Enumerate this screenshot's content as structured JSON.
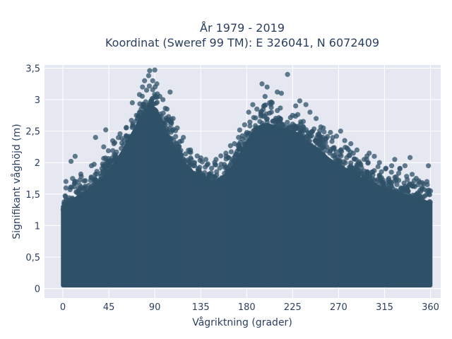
{
  "chart_data": {
    "type": "scatter",
    "title_lines": [
      "År 1979 - 2019",
      "Koordinat (Sweref 99 TM): E 326041, N 6072409"
    ],
    "xlabel": "Vågriktning (grader)",
    "ylabel": "Signifikant våghöjd (m)",
    "xlim": [
      -18,
      370
    ],
    "ylim": [
      -0.15,
      3.55
    ],
    "x_ticks": [
      0,
      45,
      90,
      135,
      180,
      225,
      270,
      315,
      360
    ],
    "x_tick_labels": [
      "0",
      "45",
      "90",
      "135",
      "180",
      "225",
      "270",
      "315",
      "360"
    ],
    "y_ticks": [
      0,
      0.5,
      1,
      1.5,
      2,
      2.5,
      3,
      3.5
    ],
    "y_tick_labels": [
      "0",
      "0,5",
      "1",
      "1,5",
      "2",
      "2,5",
      "3",
      "3,5"
    ],
    "grid": true,
    "marker_color": "#2f5168",
    "plot_background": "#e5e8f1",
    "envelope": {
      "direction": [
        0,
        10,
        20,
        30,
        40,
        50,
        60,
        70,
        80,
        85,
        90,
        95,
        100,
        110,
        120,
        130,
        140,
        150,
        160,
        170,
        180,
        190,
        200,
        210,
        220,
        230,
        240,
        250,
        260,
        270,
        280,
        290,
        300,
        310,
        320,
        330,
        340,
        350,
        360
      ],
      "upper_height": [
        1.3,
        1.4,
        1.5,
        1.6,
        1.75,
        1.95,
        2.2,
        2.5,
        2.8,
        2.9,
        2.85,
        2.7,
        2.5,
        2.2,
        1.95,
        1.8,
        1.7,
        1.7,
        1.8,
        2.0,
        2.3,
        2.55,
        2.6,
        2.55,
        2.5,
        2.45,
        2.3,
        2.2,
        2.05,
        1.95,
        1.85,
        1.75,
        1.7,
        1.6,
        1.55,
        1.5,
        1.45,
        1.4,
        1.35
      ],
      "lower_height": 0.05
    },
    "outliers": [
      {
        "x": 3,
        "y": 1.7
      },
      {
        "x": 8,
        "y": 2.02
      },
      {
        "x": 12,
        "y": 2.1
      },
      {
        "x": 18,
        "y": 1.78
      },
      {
        "x": 28,
        "y": 1.95
      },
      {
        "x": 32,
        "y": 2.4
      },
      {
        "x": 40,
        "y": 2.25
      },
      {
        "x": 42,
        "y": 2.52
      },
      {
        "x": 50,
        "y": 2.3
      },
      {
        "x": 62,
        "y": 2.55
      },
      {
        "x": 68,
        "y": 2.95
      },
      {
        "x": 72,
        "y": 2.75
      },
      {
        "x": 75,
        "y": 3.08
      },
      {
        "x": 78,
        "y": 3.2
      },
      {
        "x": 80,
        "y": 3.3
      },
      {
        "x": 82,
        "y": 3.15
      },
      {
        "x": 84,
        "y": 3.38
      },
      {
        "x": 85,
        "y": 3.46
      },
      {
        "x": 88,
        "y": 3.3
      },
      {
        "x": 90,
        "y": 3.47
      },
      {
        "x": 92,
        "y": 3.25
      },
      {
        "x": 95,
        "y": 3.05
      },
      {
        "x": 98,
        "y": 3.0
      },
      {
        "x": 102,
        "y": 2.85
      },
      {
        "x": 105,
        "y": 3.12
      },
      {
        "x": 108,
        "y": 2.7
      },
      {
        "x": 112,
        "y": 2.55
      },
      {
        "x": 118,
        "y": 2.4
      },
      {
        "x": 125,
        "y": 2.2
      },
      {
        "x": 140,
        "y": 2.05
      },
      {
        "x": 150,
        "y": 2.05
      },
      {
        "x": 160,
        "y": 2.1
      },
      {
        "x": 168,
        "y": 2.3
      },
      {
        "x": 172,
        "y": 2.4
      },
      {
        "x": 178,
        "y": 2.6
      },
      {
        "x": 182,
        "y": 2.8
      },
      {
        "x": 186,
        "y": 2.92
      },
      {
        "x": 190,
        "y": 2.85
      },
      {
        "x": 195,
        "y": 3.25
      },
      {
        "x": 198,
        "y": 3.05
      },
      {
        "x": 200,
        "y": 3.2
      },
      {
        "x": 205,
        "y": 2.95
      },
      {
        "x": 210,
        "y": 3.12
      },
      {
        "x": 214,
        "y": 3.1
      },
      {
        "x": 220,
        "y": 3.4
      },
      {
        "x": 225,
        "y": 2.75
      },
      {
        "x": 228,
        "y": 2.9
      },
      {
        "x": 232,
        "y": 2.98
      },
      {
        "x": 238,
        "y": 2.92
      },
      {
        "x": 242,
        "y": 2.8
      },
      {
        "x": 248,
        "y": 2.7
      },
      {
        "x": 255,
        "y": 2.55
      },
      {
        "x": 262,
        "y": 2.48
      },
      {
        "x": 268,
        "y": 2.42
      },
      {
        "x": 272,
        "y": 2.5
      },
      {
        "x": 276,
        "y": 2.35
      },
      {
        "x": 282,
        "y": 2.3
      },
      {
        "x": 288,
        "y": 2.2
      },
      {
        "x": 295,
        "y": 2.05
      },
      {
        "x": 300,
        "y": 2.15
      },
      {
        "x": 305,
        "y": 2.1
      },
      {
        "x": 310,
        "y": 2.0
      },
      {
        "x": 316,
        "y": 1.9
      },
      {
        "x": 322,
        "y": 1.95
      },
      {
        "x": 325,
        "y": 2.05
      },
      {
        "x": 330,
        "y": 1.9
      },
      {
        "x": 335,
        "y": 1.95
      },
      {
        "x": 340,
        "y": 2.08
      },
      {
        "x": 346,
        "y": 1.75
      },
      {
        "x": 352,
        "y": 1.68
      },
      {
        "x": 358,
        "y": 1.95
      },
      {
        "x": 360,
        "y": 1.55
      }
    ]
  }
}
